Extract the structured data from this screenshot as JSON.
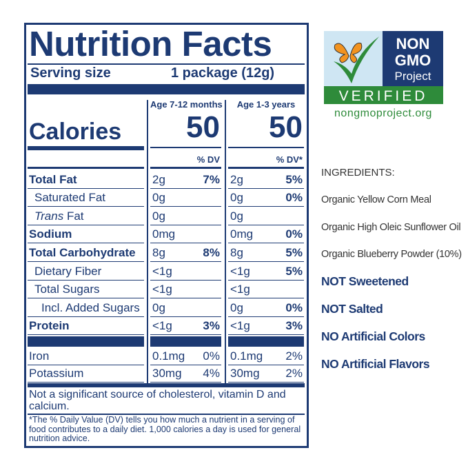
{
  "nutrition_label": {
    "title": "Nutrition Facts",
    "serving_size_label": "Serving size",
    "serving_size": "1 package (12g)",
    "calories_label": "Calories",
    "columns": [
      {
        "header": "Age 7-12 months",
        "calories": "50",
        "dv_header": "% DV"
      },
      {
        "header": "Age 1-3 years",
        "calories": "50",
        "dv_header": "% DV*"
      }
    ],
    "rows": [
      {
        "name": "Total Fat",
        "style": "main",
        "values": [
          [
            "2g",
            "7%"
          ],
          [
            "2g",
            "5%"
          ]
        ]
      },
      {
        "name": "Saturated Fat",
        "style": "sub",
        "values": [
          [
            "0g",
            null
          ],
          [
            "0g",
            "0%"
          ]
        ]
      },
      {
        "name_italic": "Trans",
        "name": "Fat",
        "style": "sub",
        "values": [
          [
            "0g",
            null
          ],
          [
            "0g",
            null
          ]
        ]
      },
      {
        "name": "Sodium",
        "style": "main",
        "values": [
          [
            "0mg",
            null
          ],
          [
            "0mg",
            "0%"
          ]
        ]
      },
      {
        "name": "Total Carbohydrate",
        "style": "main",
        "values": [
          [
            "8g",
            "8%"
          ],
          [
            "8g",
            "5%"
          ]
        ]
      },
      {
        "name": "Dietary Fiber",
        "style": "sub",
        "values": [
          [
            "<1g",
            null
          ],
          [
            "<1g",
            "5%"
          ]
        ]
      },
      {
        "name": "Total Sugars",
        "style": "sub",
        "values": [
          [
            "<1g",
            null
          ],
          [
            "<1g",
            null
          ]
        ]
      },
      {
        "name": "Incl. Added Sugars",
        "style": "subsub",
        "values": [
          [
            "0g",
            null
          ],
          [
            "0g",
            "0%"
          ]
        ]
      },
      {
        "name": "Protein",
        "style": "main",
        "values": [
          [
            "<1g",
            "3%"
          ],
          [
            "<1g",
            "3%"
          ]
        ]
      },
      {
        "name": "Iron",
        "style": "mineral",
        "values": [
          [
            "0.1mg",
            "0%"
          ],
          [
            "0.1mg",
            "2%"
          ]
        ]
      },
      {
        "name": "Potassium",
        "style": "mineral",
        "values": [
          [
            "30mg",
            "4%"
          ],
          [
            "30mg",
            "2%"
          ]
        ]
      }
    ],
    "footnote": "Not a significant source of cholesterol, vitamin D and calcium.",
    "dv_note": "*The % Daily Value (DV) tells you how much a nutrient in a serving of food contributes to a daily diet. 1,000 calories a day is used for general nutrition advice."
  },
  "logo": {
    "line1": "NON",
    "line2": "GMO",
    "line3": "Project",
    "badge": "VERIFIED",
    "url": "nongmoproject.org"
  },
  "ingredients": {
    "heading": "INGREDIENTS:",
    "items": [
      "Organic Yellow Corn Meal",
      "Organic High Oleic Sunflower Oil",
      "Organic Blueberry Powder (10%)"
    ],
    "claims": [
      "NOT Sweetened",
      "NOT Salted",
      "NO Artificial Colors",
      "NO Artificial Flavors"
    ]
  }
}
